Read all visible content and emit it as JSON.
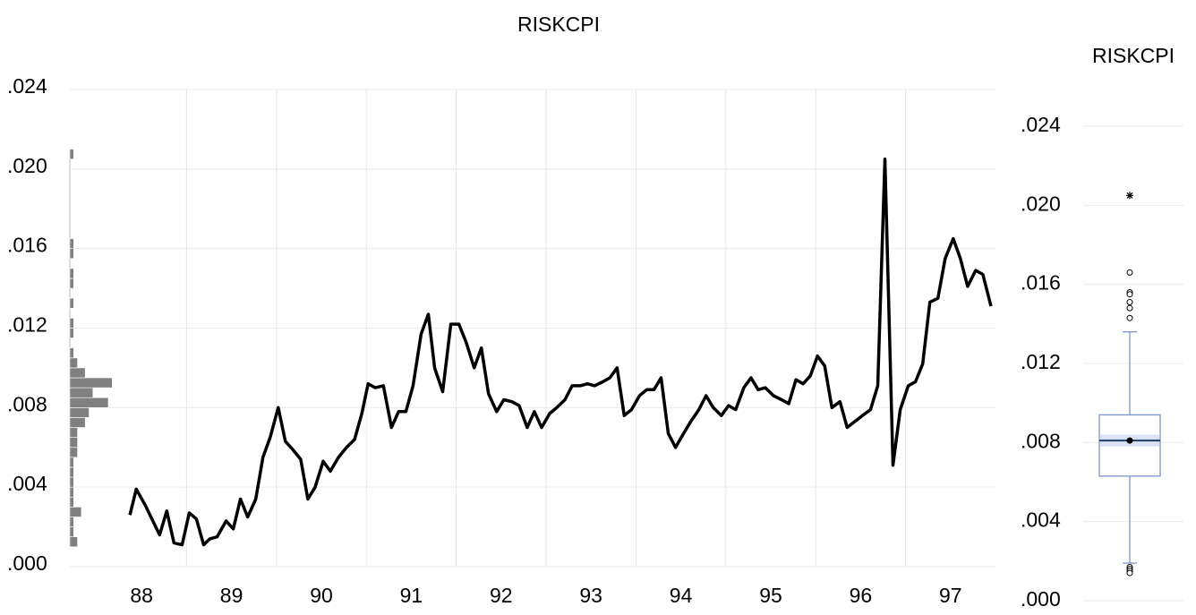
{
  "chart_data": [
    {
      "type": "line",
      "title": "RISKCPI",
      "xlim": [
        88,
        98
      ],
      "ylim": [
        0,
        0.024
      ],
      "xticks": [
        {
          "value": 88.5,
          "label": "88"
        },
        {
          "value": 89.5,
          "label": "89"
        },
        {
          "value": 90.5,
          "label": "90"
        },
        {
          "value": 91.5,
          "label": "91"
        },
        {
          "value": 92.5,
          "label": "92"
        },
        {
          "value": 93.5,
          "label": "93"
        },
        {
          "value": 94.5,
          "label": "94"
        },
        {
          "value": 95.5,
          "label": "95"
        },
        {
          "value": 96.5,
          "label": "96"
        },
        {
          "value": 97.5,
          "label": "97"
        }
      ],
      "xgrid": [
        89,
        90,
        91,
        92,
        93,
        94,
        95,
        96,
        97
      ],
      "yticks": [
        {
          "value": 0,
          "label": ".000"
        },
        {
          "value": 0.004,
          "label": ".004"
        },
        {
          "value": 0.008,
          "label": ".008"
        },
        {
          "value": 0.012,
          "label": ".012"
        },
        {
          "value": 0.016,
          "label": ".016"
        },
        {
          "value": 0.02,
          "label": ".020"
        },
        {
          "value": 0.024,
          "label": ".024"
        }
      ],
      "grid": true,
      "color": "#000000",
      "x": [
        88.37,
        88.44,
        88.54,
        88.7,
        88.78,
        88.86,
        88.95,
        89.03,
        89.11,
        89.19,
        89.26,
        89.34,
        89.44,
        89.52,
        89.6,
        89.68,
        89.77,
        89.85,
        89.93,
        90.02,
        90.1,
        90.18,
        90.27,
        90.35,
        90.43,
        90.52,
        90.6,
        90.69,
        90.78,
        90.87,
        90.95,
        91.02,
        91.1,
        91.19,
        91.28,
        91.36,
        91.44,
        91.52,
        91.61,
        91.69,
        91.76,
        91.85,
        91.94,
        92.03,
        92.11,
        92.2,
        92.28,
        92.36,
        92.45,
        92.53,
        92.62,
        92.7,
        92.79,
        92.87,
        92.95,
        93.04,
        93.12,
        93.21,
        93.29,
        93.38,
        93.46,
        93.54,
        93.63,
        93.71,
        93.79,
        93.87,
        93.95,
        94.04,
        94.12,
        94.2,
        94.28,
        94.36,
        94.44,
        94.53,
        94.61,
        94.7,
        94.78,
        94.86,
        94.95,
        95.03,
        95.11,
        95.2,
        95.28,
        95.36,
        95.44,
        95.53,
        95.62,
        95.7,
        95.78,
        95.86,
        95.94,
        96.02,
        96.1,
        96.18,
        96.27,
        96.35,
        96.52,
        96.61,
        96.69,
        96.77,
        96.86,
        96.94,
        97.03,
        97.11,
        97.19,
        97.27,
        97.36,
        97.44,
        97.53,
        97.61,
        97.69,
        97.78,
        97.86,
        97.95
      ],
      "values": [
        0.0026,
        0.0039,
        0.0031,
        0.0016,
        0.0028,
        0.0012,
        0.0011,
        0.0027,
        0.0024,
        0.0011,
        0.0014,
        0.0015,
        0.0023,
        0.0019,
        0.0034,
        0.0025,
        0.0034,
        0.0055,
        0.0065,
        0.008,
        0.0063,
        0.0059,
        0.0054,
        0.0034,
        0.004,
        0.0053,
        0.0048,
        0.0055,
        0.006,
        0.0064,
        0.0077,
        0.0092,
        0.009,
        0.0091,
        0.007,
        0.0078,
        0.0078,
        0.0091,
        0.0117,
        0.0127,
        0.01,
        0.0088,
        0.0122,
        0.0122,
        0.0113,
        0.01,
        0.011,
        0.0087,
        0.0078,
        0.0084,
        0.0083,
        0.0081,
        0.007,
        0.0078,
        0.007,
        0.0077,
        0.008,
        0.0084,
        0.0091,
        0.0091,
        0.0092,
        0.0091,
        0.0093,
        0.0095,
        0.01,
        0.0076,
        0.0079,
        0.0086,
        0.0089,
        0.0089,
        0.0095,
        0.0067,
        0.006,
        0.0067,
        0.0073,
        0.0079,
        0.0086,
        0.008,
        0.0076,
        0.0081,
        0.0079,
        0.009,
        0.0095,
        0.0089,
        0.009,
        0.0086,
        0.0084,
        0.0082,
        0.0094,
        0.0092,
        0.0096,
        0.0106,
        0.0101,
        0.008,
        0.0083,
        0.007,
        0.0076,
        0.0079,
        0.0091,
        0.0205,
        0.0051,
        0.0079,
        0.0091,
        0.0093,
        0.0102,
        0.0133,
        0.0135,
        0.0155,
        0.0165,
        0.0155,
        0.0141,
        0.0149,
        0.0147,
        0.0131
      ],
      "histogram": {
        "color": "#808080",
        "bins": [
          0.001,
          0.0015,
          0.002,
          0.0025,
          0.003,
          0.0035,
          0.004,
          0.0045,
          0.005,
          0.0055,
          0.006,
          0.0065,
          0.007,
          0.0075,
          0.008,
          0.0085,
          0.009,
          0.0095,
          0.01,
          0.0105,
          0.011,
          0.0115,
          0.012,
          0.0125,
          0.013,
          0.0135,
          0.014,
          0.0145,
          0.015,
          0.0155,
          0.016,
          0.0165,
          0.017,
          0.0175,
          0.018,
          0.0185,
          0.019,
          0.0195,
          0.02,
          0.0205,
          0.021
        ],
        "counts": [
          2,
          1,
          1,
          3,
          1,
          1,
          1,
          1,
          1,
          2,
          2,
          2,
          4,
          5,
          10,
          6,
          11,
          4,
          2,
          1,
          0,
          1,
          1,
          0,
          1,
          0,
          1,
          1,
          0,
          1,
          1,
          0,
          0,
          0,
          0,
          0,
          0,
          0,
          0,
          1
        ]
      }
    },
    {
      "type": "box",
      "title": "RISKCPI",
      "ylim": [
        0,
        0.024
      ],
      "yticks": [
        {
          "value": 0,
          "label": ".000"
        },
        {
          "value": 0.004,
          "label": ".004"
        },
        {
          "value": 0.008,
          "label": ".008"
        },
        {
          "value": 0.012,
          "label": ".012"
        },
        {
          "value": 0.016,
          "label": ".016"
        },
        {
          "value": 0.02,
          "label": ".020"
        },
        {
          "value": 0.024,
          "label": ".024"
        }
      ],
      "grid": true,
      "color": "#7b98c9",
      "notch_color": "#dbe3f1",
      "q1": 0.0063,
      "median": 0.0081,
      "q3": 0.0094,
      "mean": 0.0081,
      "notch_low": 0.0078,
      "notch_high": 0.0084,
      "whisker_low": 0.0019,
      "whisker_high": 0.0136,
      "outliers": [
        0.0166,
        0.0156,
        0.0155,
        0.0151,
        0.0148,
        0.0143,
        0.0017,
        0.0016,
        0.0015,
        0.0014
      ],
      "far_outliers": [
        0.0205
      ]
    }
  ]
}
